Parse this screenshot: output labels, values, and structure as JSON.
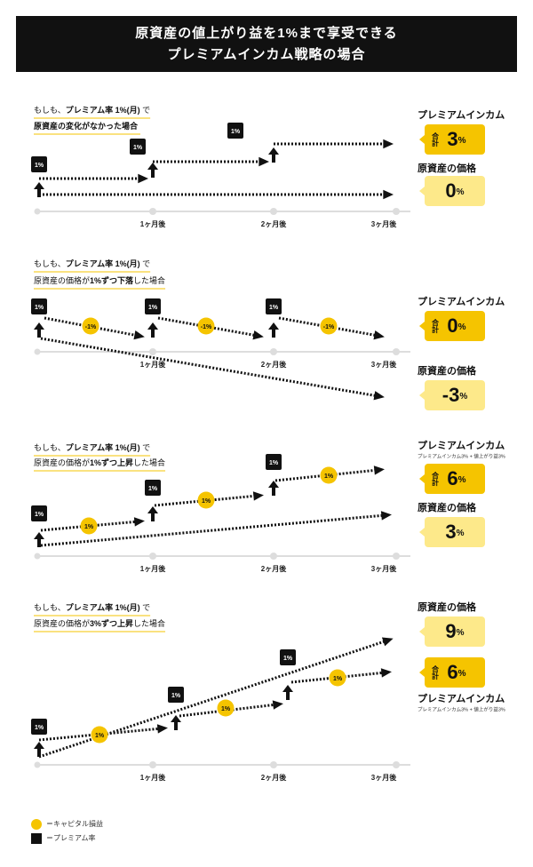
{
  "header": {
    "title_lines": [
      "原資産の値上がり益を1%まで享受できる",
      "プレミアムインカム戦略の場合"
    ]
  },
  "axis_labels": [
    "1ヶ月後",
    "2ヶ月後",
    "3ヶ月後"
  ],
  "panels": [
    {
      "condition": {
        "line1": [
          {
            "text": "もしも、"
          },
          {
            "text": "プレミアム率 1%(月)",
            "bold": true
          },
          {
            "text": " で"
          }
        ],
        "line2": [
          {
            "text": "原資産の変化がなかった場合",
            "bold": true
          }
        ]
      },
      "premium_badges": [
        "1%",
        "1%",
        "1%"
      ],
      "boxes": [
        {
          "label": "プレミアムインカム",
          "total_label": "合計",
          "number": "3",
          "unit": "%",
          "style": "dark"
        },
        {
          "label": "原資産の価格",
          "number": "0",
          "unit": "%",
          "style": "light"
        }
      ]
    },
    {
      "condition": {
        "line1": [
          {
            "text": "もしも、"
          },
          {
            "text": "プレミアム率 1%(月)",
            "bold": true
          },
          {
            "text": " で"
          }
        ],
        "line2": [
          {
            "text": "原資産の価格が"
          },
          {
            "text": "1%ずつ下落",
            "bold": true
          },
          {
            "text": "した場合"
          }
        ]
      },
      "premium_badges": [
        "1%",
        "1%",
        "1%"
      ],
      "capital_badges": [
        "-1%",
        "-1%",
        "-1%"
      ],
      "boxes": [
        {
          "label": "プレミアムインカム",
          "total_label": "合計",
          "number": "0",
          "unit": "%",
          "style": "dark"
        },
        {
          "label": "原資産の価格",
          "number": "-3",
          "unit": "%",
          "style": "light"
        }
      ]
    },
    {
      "condition": {
        "line1": [
          {
            "text": "もしも、"
          },
          {
            "text": "プレミアム率 1%(月)",
            "bold": true
          },
          {
            "text": " で"
          }
        ],
        "line2": [
          {
            "text": "原資産の価格が"
          },
          {
            "text": "1%ずつ上昇",
            "bold": true
          },
          {
            "text": "した場合"
          }
        ]
      },
      "premium_badges": [
        "1%",
        "1%",
        "1%"
      ],
      "capital_badges": [
        "1%",
        "1%",
        "1%"
      ],
      "boxes": [
        {
          "label": "プレミアムインカム",
          "note": "プレミアムインカム3% + 値上がり益3%",
          "total_label": "合計",
          "number": "6",
          "unit": "%",
          "style": "dark"
        },
        {
          "label": "原資産の価格",
          "number": "3",
          "unit": "%",
          "style": "light"
        }
      ]
    },
    {
      "condition": {
        "line1": [
          {
            "text": "もしも、"
          },
          {
            "text": "プレミアム率 1%(月)",
            "bold": true
          },
          {
            "text": " で"
          }
        ],
        "line2": [
          {
            "text": "原資産の価格が"
          },
          {
            "text": "3%ずつ上昇",
            "bold": true
          },
          {
            "text": "した場合"
          }
        ]
      },
      "premium_badges": [
        "1%",
        "1%",
        "1%"
      ],
      "capital_badges": [
        "1%",
        "1%",
        "1%"
      ],
      "boxes": [
        {
          "label": "原資産の価格",
          "number": "9",
          "unit": "%",
          "style": "light"
        },
        {
          "label": "プレミアムインカム",
          "note": "プレミアムインカム3% + 値上がり益3%",
          "total_label": "合計",
          "number": "6",
          "unit": "%",
          "style": "dark",
          "label_below": true
        }
      ]
    }
  ],
  "legend": [
    {
      "text": "＝キャピタル損益",
      "marker": "circle"
    },
    {
      "text": "＝プレミアム率",
      "marker": "square"
    }
  ]
}
